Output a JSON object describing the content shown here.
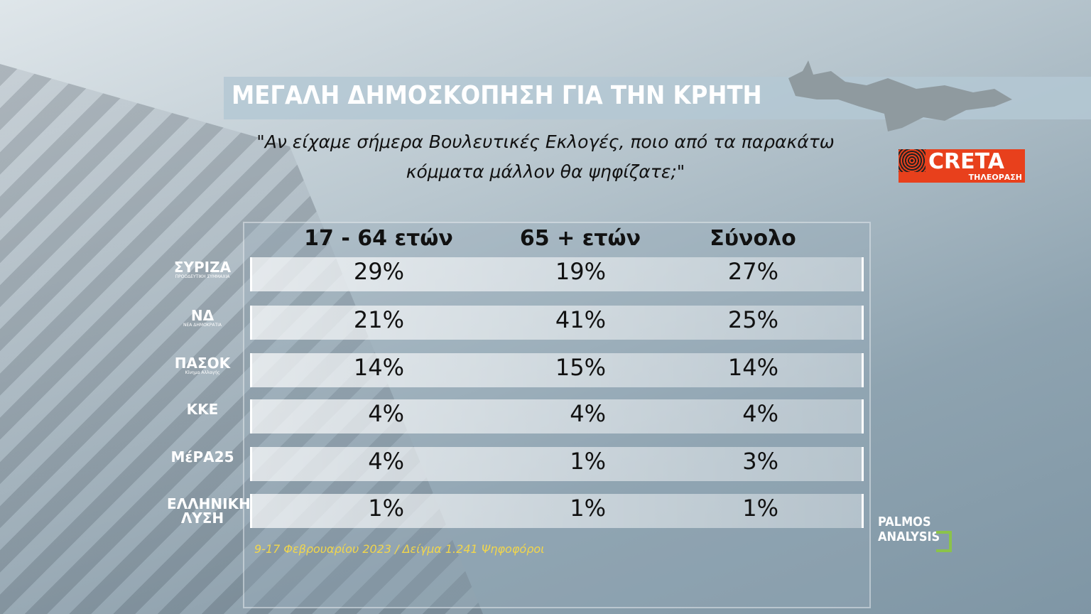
{
  "header": {
    "title": "ΜΕΓΑΛΗ ΔΗΜΟΣΚΟΠΗΣΗ ΓΙΑ ΤΗΝ ΚΡΗΤΗ",
    "question": [
      "\"Αν είχαμε σήμερα Βουλευτικές Εκλογές, ποιο από τα παρακάτω",
      "κόμματα μάλλον θα ψηφίζατε;\""
    ]
  },
  "channel": {
    "name": "CRETA",
    "sub": "ΤΗΛΕΟΡΑΣΗ"
  },
  "table": {
    "columns": [
      "17 - 64 ετών",
      "65 + ετών",
      "Σύνολο"
    ],
    "rows": [
      {
        "party": "ΣΥΡΙΖΑ",
        "sub": "ΠΡΟΟΔΕΥΤΙΚΗ ΣΥΜΜΑΧΙΑ",
        "values": [
          "29%",
          "19%",
          "27%"
        ]
      },
      {
        "party": "ΝΔ",
        "sub": "ΝΕΑ ΔΗΜΟΚΡΑΤΙΑ",
        "values": [
          "21%",
          "41%",
          "25%"
        ]
      },
      {
        "party": "ΠΑΣΟΚ",
        "sub": "Κίνημα Αλλαγής",
        "values": [
          "14%",
          "15%",
          "14%"
        ]
      },
      {
        "party": "ΚΚΕ",
        "values": [
          "4%",
          "4%",
          "4%"
        ]
      },
      {
        "party": "ΜέΡΑ25",
        "values": [
          "4%",
          "1%",
          "3%"
        ]
      },
      {
        "party": "ΕΛΛΗΝΙΚΗ ΛΥΣΗ",
        "values": [
          "1%",
          "1%",
          "1%"
        ]
      }
    ]
  },
  "footnote": "9-17 Φεβρουαρίου 2023 / Δείγμα 1.241 Ψηφοφόροι",
  "watermark": [
    "PALMOS",
    "ANALYSIS"
  ]
}
